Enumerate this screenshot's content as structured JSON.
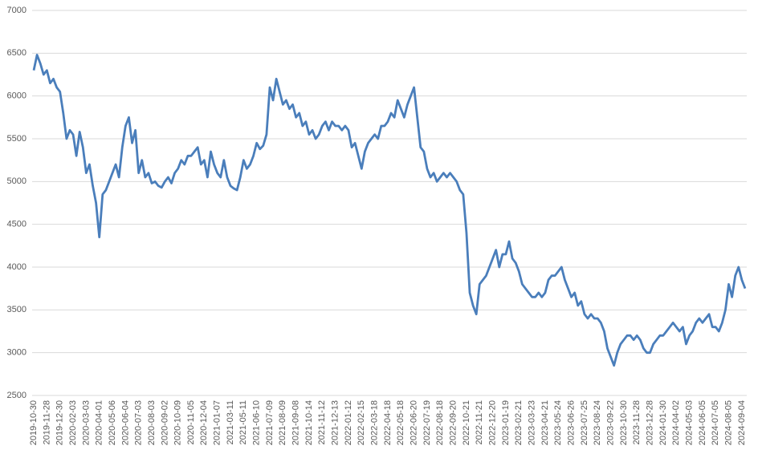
{
  "chart_data": {
    "type": "line",
    "color": "#4a7ebb",
    "ylim": [
      2500,
      7000
    ],
    "yticks": [
      2500,
      3000,
      3500,
      4000,
      4500,
      5000,
      5500,
      6000,
      6500,
      7000
    ],
    "grid": true,
    "categories": [
      "2019-10-30",
      null,
      null,
      null,
      "2019-11-28",
      null,
      null,
      null,
      "2019-12-30",
      null,
      null,
      null,
      "2020-02-03",
      null,
      null,
      null,
      "2020-03-03",
      null,
      null,
      null,
      "2020-04-01",
      null,
      null,
      null,
      "2020-05-06",
      null,
      null,
      null,
      "2020-06-04",
      null,
      null,
      null,
      "2020-07-03",
      null,
      null,
      null,
      "2020-08-03",
      null,
      null,
      null,
      "2020-09-02",
      null,
      null,
      null,
      "2020-10-09",
      null,
      null,
      null,
      "2020-11-05",
      null,
      null,
      null,
      "2020-12-04",
      null,
      null,
      null,
      "2021-01-07",
      null,
      null,
      null,
      "2021-03-11",
      null,
      null,
      null,
      "2021-05-11",
      null,
      null,
      null,
      "2021-06-10",
      null,
      null,
      null,
      "2021-07-09",
      null,
      null,
      null,
      "2021-08-09",
      null,
      null,
      null,
      "2021-09-08",
      null,
      null,
      null,
      "2021-10-14",
      null,
      null,
      null,
      "2021-11-12",
      null,
      null,
      null,
      "2021-12-13",
      null,
      null,
      null,
      "2022-01-12",
      null,
      null,
      null,
      "2022-02-15",
      null,
      null,
      null,
      "2022-03-18",
      null,
      null,
      null,
      "2022-04-18",
      null,
      null,
      null,
      "2022-05-18",
      null,
      null,
      null,
      "2022-06-20",
      null,
      null,
      null,
      "2022-07-19",
      null,
      null,
      null,
      "2022-08-18",
      null,
      null,
      null,
      "2022-09-20",
      null,
      null,
      null,
      "2022-10-21",
      null,
      null,
      null,
      "2022-11-21",
      null,
      null,
      null,
      "2022-12-20",
      null,
      null,
      null,
      "2023-01-19",
      null,
      null,
      null,
      "2023-02-21",
      null,
      null,
      null,
      "2023-03-23",
      null,
      null,
      null,
      "2023-04-21",
      null,
      null,
      null,
      "2023-05-24",
      null,
      null,
      null,
      "2023-06-26",
      null,
      null,
      null,
      "2023-07-25",
      null,
      null,
      null,
      "2023-08-24",
      null,
      null,
      null,
      "2023-09-22",
      null,
      null,
      null,
      "2023-10-30",
      null,
      null,
      null,
      "2023-11-28",
      null,
      null,
      null,
      "2023-12-28",
      null,
      null,
      null,
      "2024-01-30",
      null,
      null,
      null,
      "2024-04-02",
      null,
      null,
      null,
      "2024-05-03",
      null,
      null,
      null,
      "2024-06-05",
      null,
      null,
      null,
      "2024-07-05",
      null,
      null,
      null,
      "2024-08-05",
      null,
      null,
      null,
      "2024-09-04",
      null
    ],
    "values": [
      6300,
      6480,
      6380,
      6250,
      6300,
      6150,
      6200,
      6100,
      6050,
      5800,
      5500,
      5600,
      5550,
      5300,
      5580,
      5400,
      5100,
      5200,
      4950,
      4750,
      4350,
      4850,
      4900,
      5000,
      5100,
      5200,
      5050,
      5400,
      5650,
      5750,
      5450,
      5600,
      5100,
      5250,
      5050,
      5100,
      4980,
      5000,
      4950,
      4930,
      5000,
      5050,
      4980,
      5100,
      5150,
      5250,
      5200,
      5300,
      5300,
      5350,
      5400,
      5200,
      5250,
      5050,
      5350,
      5200,
      5100,
      5050,
      5250,
      5050,
      4950,
      4920,
      4900,
      5050,
      5250,
      5150,
      5200,
      5300,
      5450,
      5380,
      5420,
      5550,
      6100,
      5950,
      6200,
      6050,
      5900,
      5950,
      5850,
      5900,
      5750,
      5800,
      5650,
      5700,
      5550,
      5600,
      5500,
      5550,
      5650,
      5700,
      5600,
      5700,
      5650,
      5650,
      5600,
      5650,
      5600,
      5400,
      5450,
      5300,
      5150,
      5350,
      5450,
      5500,
      5550,
      5500,
      5650,
      5650,
      5700,
      5800,
      5750,
      5950,
      5850,
      5750,
      5900,
      6000,
      6100,
      5750,
      5400,
      5350,
      5150,
      5050,
      5100,
      5000,
      5050,
      5100,
      5050,
      5100,
      5050,
      5000,
      4900,
      4850,
      4400,
      3700,
      3550,
      3450,
      3800,
      3850,
      3900,
      4000,
      4100,
      4200,
      4000,
      4150,
      4150,
      4300,
      4100,
      4050,
      3950,
      3800,
      3750,
      3700,
      3650,
      3650,
      3700,
      3650,
      3700,
      3850,
      3900,
      3900,
      3950,
      4000,
      3850,
      3750,
      3650,
      3700,
      3550,
      3600,
      3450,
      3400,
      3450,
      3400,
      3400,
      3350,
      3250,
      3050,
      2950,
      2850,
      3000,
      3100,
      3150,
      3200,
      3200,
      3150,
      3200,
      3150,
      3050,
      3000,
      3000,
      3100,
      3150,
      3200,
      3200,
      3250,
      3300,
      3350,
      3300,
      3250,
      3300,
      3100,
      3200,
      3250,
      3350,
      3400,
      3350,
      3400,
      3450,
      3300,
      3300,
      3250,
      3350,
      3500,
      3800,
      3650,
      3900,
      4000,
      3850,
      3750
    ]
  }
}
